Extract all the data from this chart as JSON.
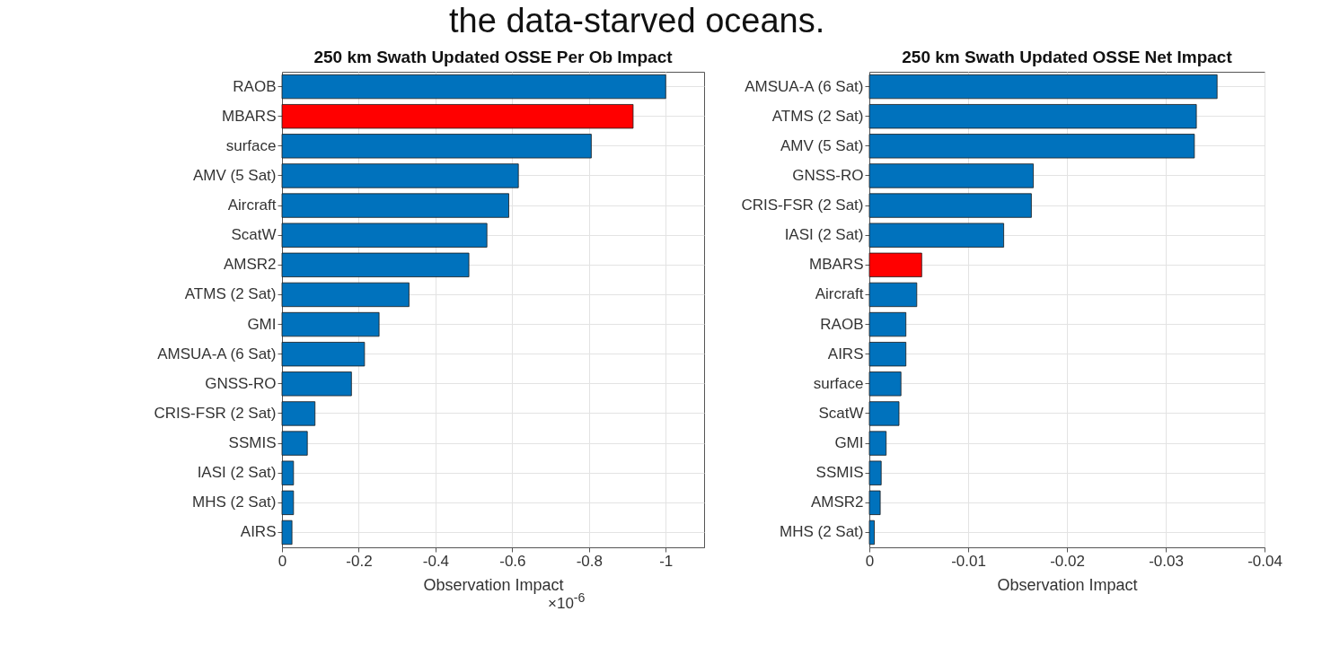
{
  "chart_data": [
    {
      "type": "bar",
      "orientation": "horizontal",
      "title": "250 km Swath Updated OSSE Per Ob Impact",
      "xlabel": "Observation Impact",
      "categories": [
        "RAOB",
        "MBARS",
        "surface",
        "AMV (5 Sat)",
        "Aircraft",
        "ScatW",
        "AMSR2",
        "ATMS (2 Sat)",
        "GMI",
        "AMSUA-A (6 Sat)",
        "GNSS-RO",
        "CRIS-FSR (2 Sat)",
        "SSMIS",
        "IASI (2 Sat)",
        "MHS (2 Sat)",
        "AIRS"
      ],
      "values": [
        -1.0,
        -0.915,
        -0.806,
        -0.616,
        -0.591,
        -0.534,
        -0.487,
        -0.331,
        -0.253,
        -0.215,
        -0.181,
        -0.086,
        -0.066,
        -0.03,
        -0.03,
        -0.026
      ],
      "colors": [
        "#0072bd",
        "#ff0000",
        "#0072bd",
        "#0072bd",
        "#0072bd",
        "#0072bd",
        "#0072bd",
        "#0072bd",
        "#0072bd",
        "#0072bd",
        "#0072bd",
        "#0072bd",
        "#0072bd",
        "#0072bd",
        "#0072bd",
        "#0072bd"
      ],
      "xlim": [
        0,
        -1.1
      ],
      "xticks": [
        0,
        -0.2,
        -0.4,
        -0.6,
        -0.8,
        -1
      ],
      "grid": true,
      "annotations": [
        "the data-starved oceans.",
        "×10$^{-6}$"
      ]
    },
    {
      "type": "bar",
      "orientation": "horizontal",
      "title": "250 km Swath Updated OSSE Net Impact",
      "xlabel": "Observation Impact",
      "categories": [
        "AMSUA-A (6 Sat)",
        "ATMS (2 Sat)",
        "AMV (5 Sat)",
        "GNSS-RO",
        "CRIS-FSR (2 Sat)",
        "IASI (2 Sat)",
        "MBARS",
        "Aircraft",
        "RAOB",
        "AIRS",
        "surface",
        "ScatW",
        "GMI",
        "SSMIS",
        "AMSR2",
        "MHS (2 Sat)"
      ],
      "values": [
        -0.0352,
        -0.0331,
        -0.0329,
        -0.0166,
        -0.0164,
        -0.0136,
        -0.0053,
        -0.0048,
        -0.0037,
        -0.0037,
        -0.0032,
        -0.003,
        -0.0017,
        -0.0012,
        -0.0011,
        -0.0005
      ],
      "colors": [
        "#0072bd",
        "#0072bd",
        "#0072bd",
        "#0072bd",
        "#0072bd",
        "#0072bd",
        "#ff0000",
        "#0072bd",
        "#0072bd",
        "#0072bd",
        "#0072bd",
        "#0072bd",
        "#0072bd",
        "#0072bd",
        "#0072bd",
        "#0072bd"
      ],
      "xlim": [
        0,
        -0.04
      ],
      "xticks": [
        0,
        -0.01,
        -0.02,
        -0.03,
        -0.04
      ],
      "grid": true
    }
  ]
}
